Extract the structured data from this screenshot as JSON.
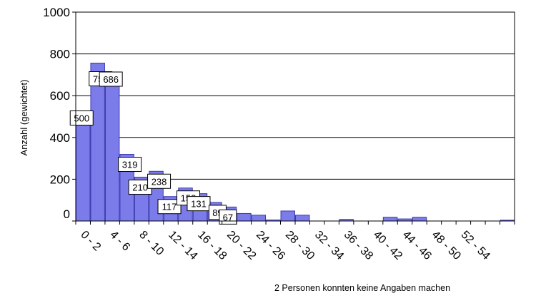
{
  "chart_data": {
    "type": "bar",
    "ylabel": "Anzahl (gewichtet)",
    "ylim": [
      0,
      1000
    ],
    "yticks": [
      0,
      200,
      400,
      600,
      800,
      1000
    ],
    "grid": true,
    "xtick_labels": [
      "0 - 2",
      "4 - 6",
      "8 - 10",
      "12 - 14",
      "16 - 18",
      "20 - 22",
      "24 - 26",
      "28 - 30",
      "32 - 34",
      "36 - 38",
      "40 - 42",
      "44 - 46",
      "48 - 50",
      "52 - 54"
    ],
    "values": [
      500,
      756,
      686,
      319,
      210,
      238,
      117,
      158,
      131,
      89,
      67,
      36,
      28,
      5,
      48,
      28,
      0,
      0,
      8,
      0,
      0,
      18,
      10,
      18,
      0,
      0,
      0,
      0,
      0,
      4
    ],
    "data_labels": [
      {
        "index": 0,
        "text": "500"
      },
      {
        "index": 1,
        "text": "756"
      },
      {
        "index": 2,
        "text": "686"
      },
      {
        "index": 3,
        "text": "319"
      },
      {
        "index": 4,
        "text": "210"
      },
      {
        "index": 5,
        "text": "238"
      },
      {
        "index": 6,
        "text": "117"
      },
      {
        "index": 7,
        "text": "158"
      },
      {
        "index": 8,
        "text": "131"
      },
      {
        "index": 9,
        "text": "89"
      },
      {
        "index": 10,
        "text": "67"
      }
    ],
    "bar_color": "#7b7bea",
    "bar_edge_color": "#3a3ab0"
  },
  "footnote": "2 Personen konnten keine Angaben machen"
}
